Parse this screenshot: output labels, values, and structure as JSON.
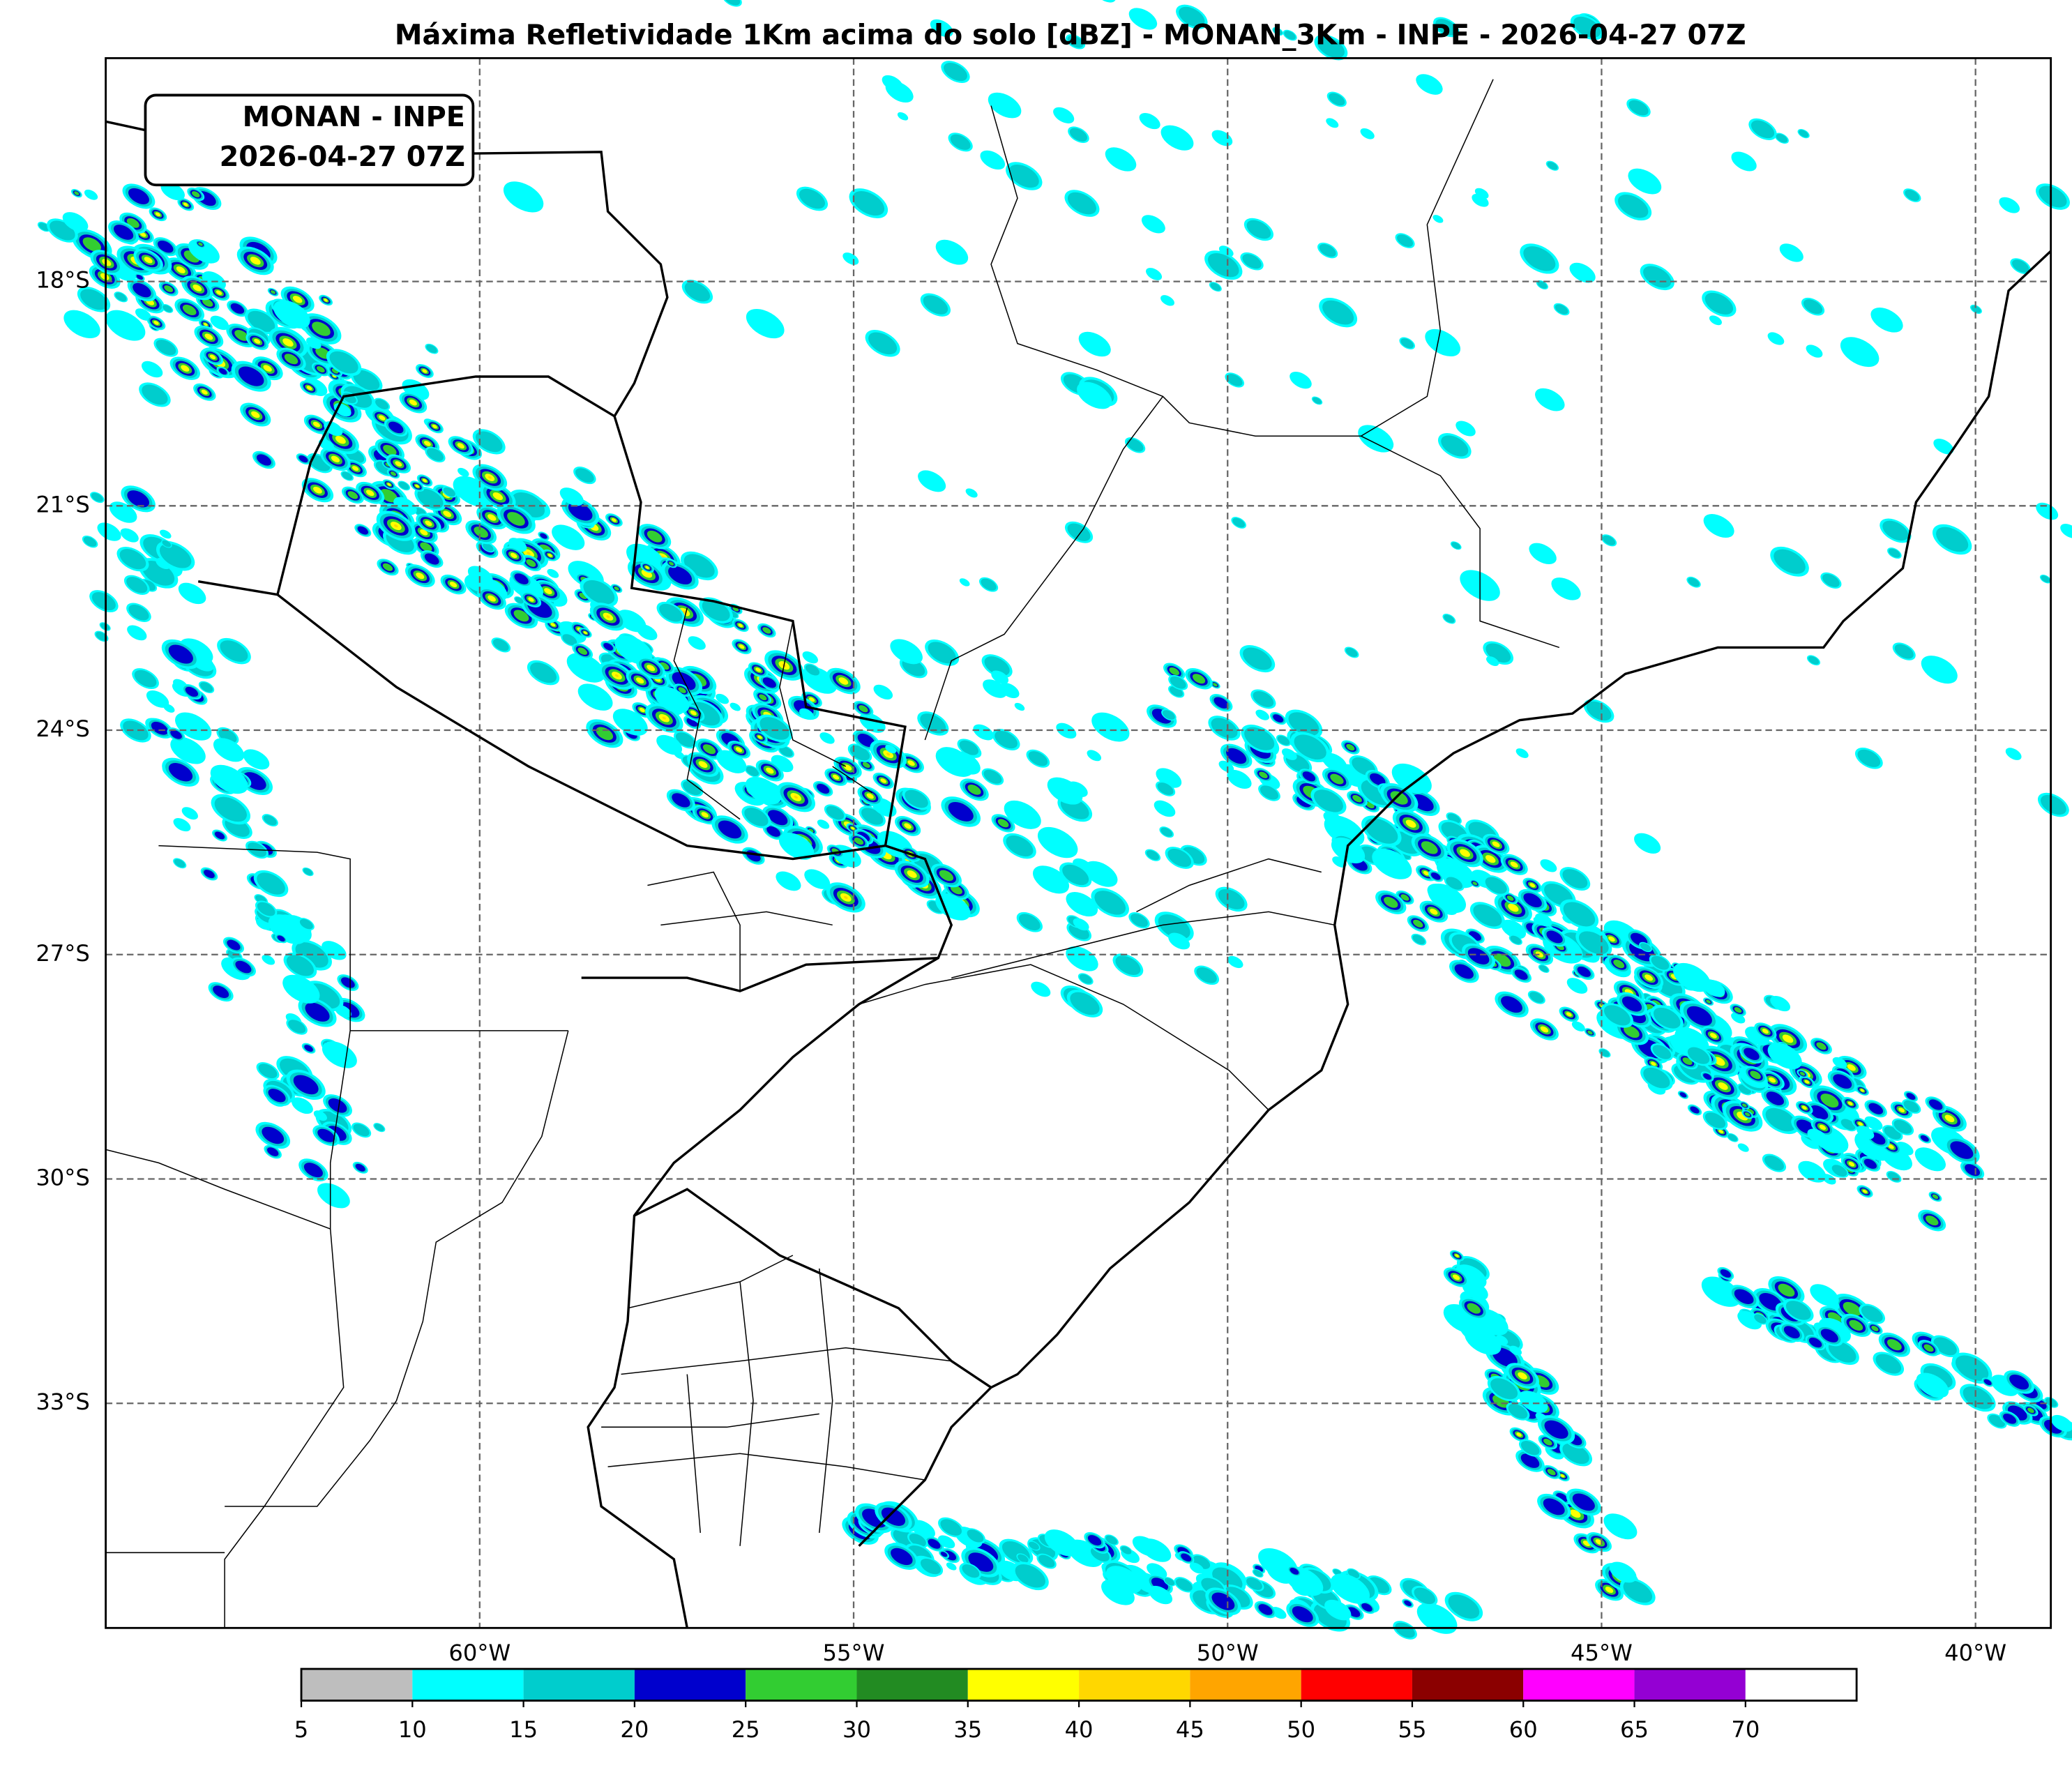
{
  "title": "Máxima Refletividade 1Km acima do solo [dBZ] - MONAN_3Km - INPE - 2026-04-27 07Z",
  "label_box": [
    "MONAN - INPE",
    "2026-04-27 07Z"
  ],
  "lat_ticks": [
    {
      "value": -18,
      "label": "18°S"
    },
    {
      "value": -21,
      "label": "21°S"
    },
    {
      "value": -24,
      "label": "24°S"
    },
    {
      "value": -27,
      "label": "27°S"
    },
    {
      "value": -30,
      "label": "30°S"
    },
    {
      "value": -33,
      "label": "33°S"
    }
  ],
  "lon_ticks": [
    {
      "value": -60,
      "label": "60°W"
    },
    {
      "value": -55,
      "label": "55°W"
    },
    {
      "value": -50,
      "label": "50°W"
    },
    {
      "value": -45,
      "label": "45°W"
    },
    {
      "value": -40,
      "label": "40°W"
    }
  ],
  "colorbar": {
    "lim": [
      5,
      75
    ],
    "ticks": [
      5,
      10,
      15,
      20,
      25,
      30,
      35,
      40,
      45,
      50,
      55,
      60,
      65,
      70
    ],
    "colors": [
      "#bebebe",
      "#00ffff",
      "#00cdcd",
      "#0000cd",
      "#32cd32",
      "#228b22",
      "#ffff00",
      "#ffd700",
      "#ffa500",
      "#ff0000",
      "#8b0000",
      "#ff00ff",
      "#9400d3",
      "#ffffff"
    ]
  }
}
